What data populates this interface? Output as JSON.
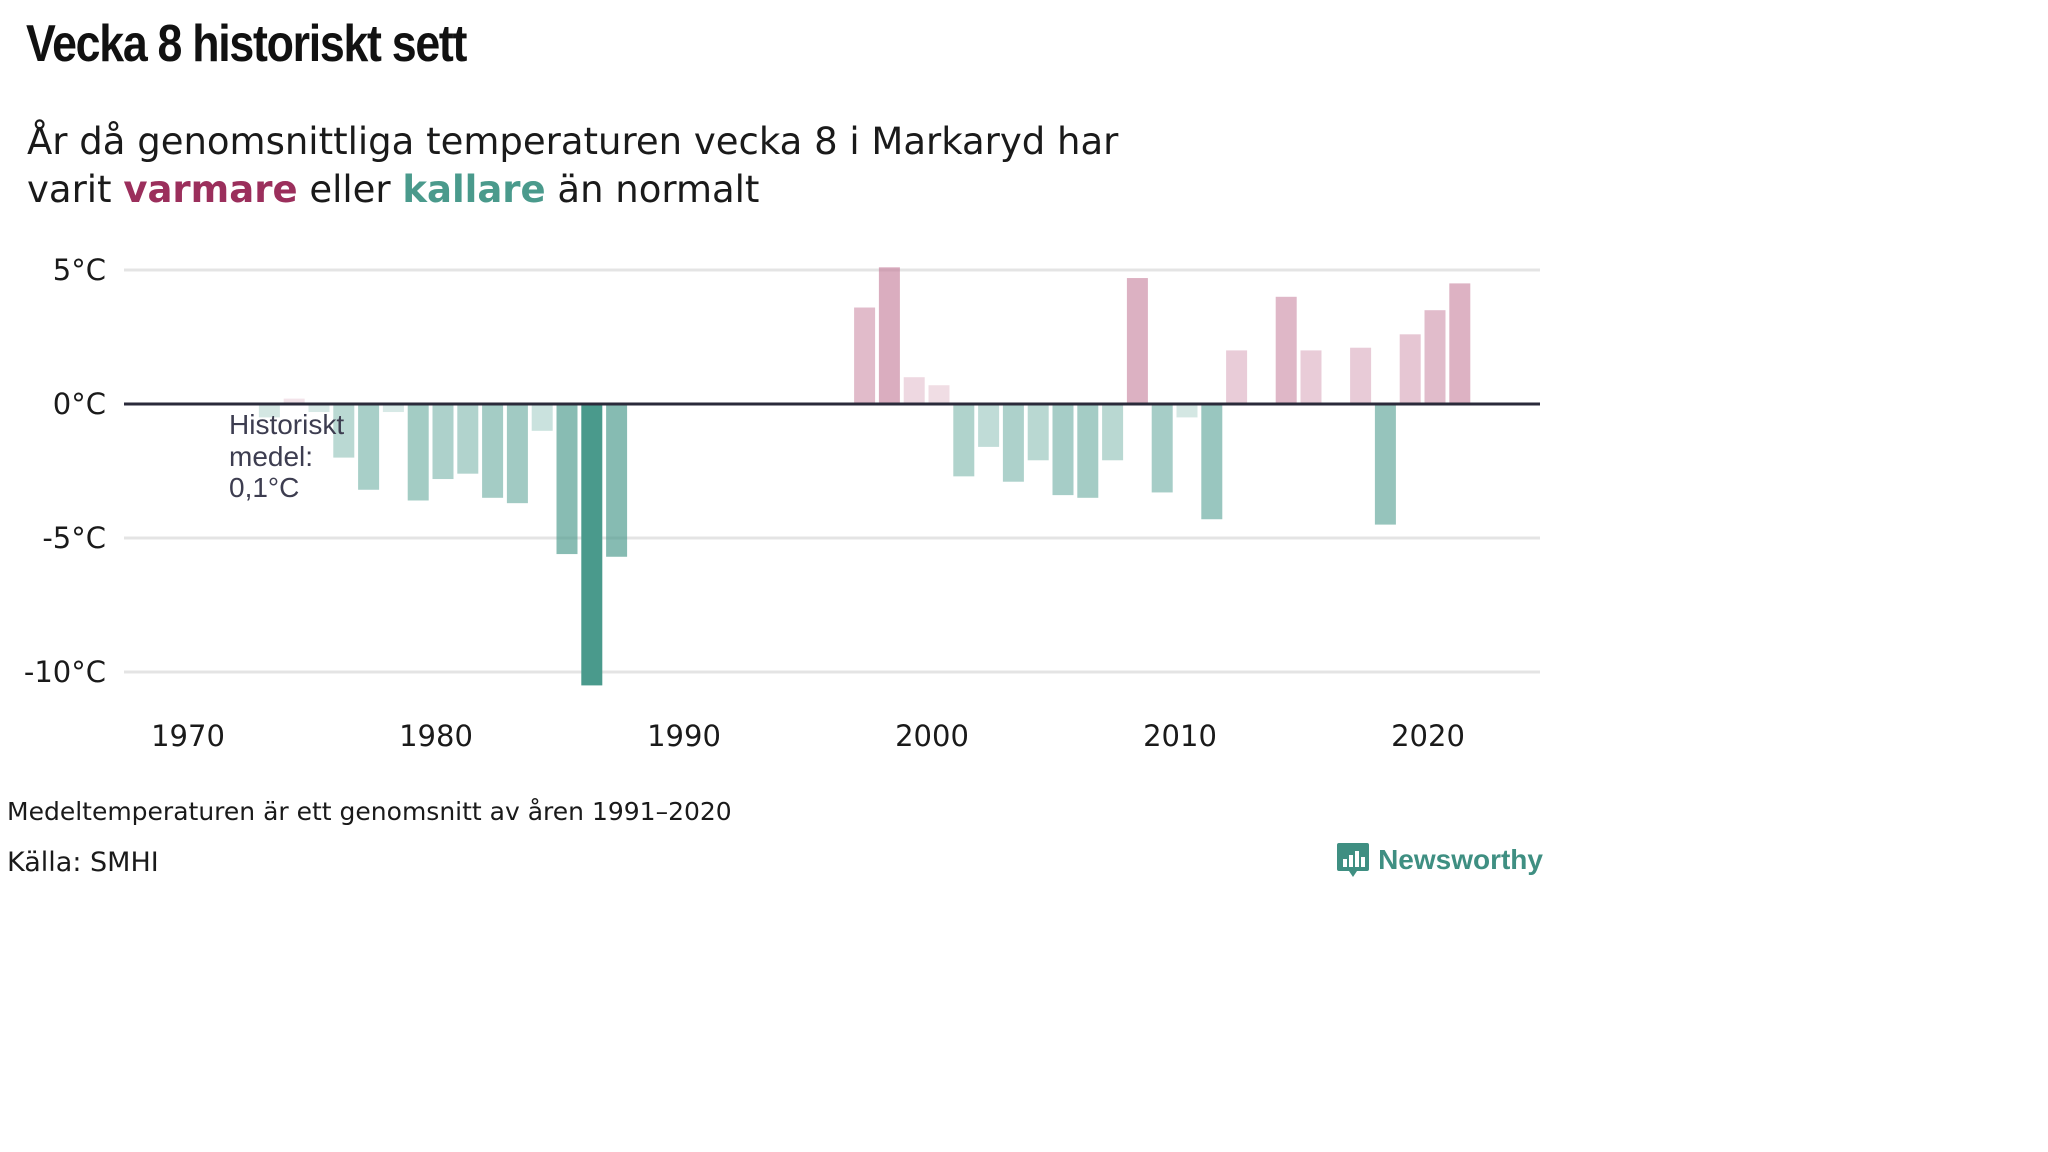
{
  "title": "Vecka 8 historiskt sett",
  "subtitle": {
    "line1": "År då genomsnittliga temperaturen vecka 8 i Markaryd har",
    "line2_pre": "varit",
    "warm_word": "varmare",
    "mid": "eller",
    "cold_word": "kallare",
    "post": "än normalt"
  },
  "colors": {
    "warm": "#c47a98",
    "cold": "#4a9a8c",
    "warm_text": "#9b2f5c",
    "cold_text": "#4a9a8c",
    "zero_line": "#2a2a3a",
    "grid": "#e4e4e4",
    "brand": "#3f8f82"
  },
  "chart_data": {
    "type": "bar",
    "unit": "°C",
    "ylim": [
      -10.5,
      5.5
    ],
    "yticks": [
      5,
      0,
      -5,
      -10
    ],
    "ytick_labels": [
      "5°C",
      "0°C",
      "-5°C",
      "-10°C"
    ],
    "xticks": [
      1970,
      1980,
      1990,
      2000,
      2010,
      2020
    ],
    "xtick_labels": [
      "1970",
      "1980",
      "1990",
      "2000",
      "2010",
      "2020"
    ],
    "grid": true,
    "years": [
      1973,
      1974,
      1975,
      1976,
      1977,
      1978,
      1979,
      1980,
      1981,
      1982,
      1983,
      1984,
      1985,
      1986,
      1987,
      1997,
      1998,
      1999,
      2000,
      2001,
      2002,
      2003,
      2004,
      2005,
      2006,
      2007,
      2008,
      2009,
      2010,
      2011,
      2012,
      2014,
      2015,
      2017,
      2018,
      2019,
      2020,
      2021
    ],
    "values": [
      -0.5,
      0.2,
      -0.3,
      -2.0,
      -3.2,
      -0.3,
      -3.6,
      -2.8,
      -2.6,
      -3.5,
      -3.7,
      -1.0,
      -5.6,
      -10.5,
      -5.7,
      3.6,
      5.1,
      1.0,
      0.7,
      -2.7,
      -1.6,
      -2.9,
      -2.1,
      -3.4,
      -3.5,
      -2.1,
      4.7,
      -3.3,
      -0.5,
      -4.3,
      2.0,
      4.0,
      2.0,
      2.1,
      -4.5,
      2.6,
      3.5,
      4.5
    ],
    "average_label": [
      "Historiskt",
      "medel:",
      "0,1°C"
    ]
  },
  "footer": {
    "note": "Medeltemperaturen är ett genomsnitt av åren 1991–2020",
    "source": "Källa: SMHI",
    "brand": "Newsworthy",
    "brand_icon": "bar-chart-speech-bubble-icon"
  }
}
